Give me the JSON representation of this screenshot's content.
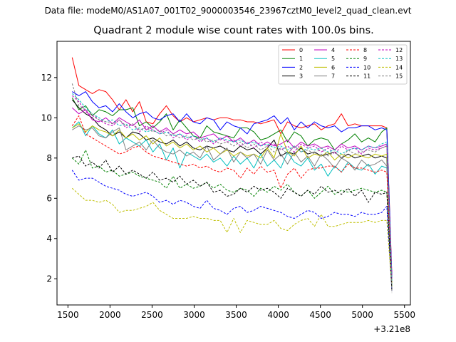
{
  "header": {
    "suptitle": "Data file: modeM0/AS1A07_001T02_9000003546_23967cztM0_level2_quad_clean.evt"
  },
  "chart_data": {
    "type": "line",
    "title": "Quadrant 2 module wise count rates with 100.0s bins.",
    "xlabel": "",
    "ylabel": "",
    "x_offset_label": "+3.21e8",
    "xlim": [
      1370,
      5570
    ],
    "ylim": [
      0.7,
      13.8
    ],
    "x_ticks": [
      1500,
      2000,
      2500,
      3000,
      3500,
      4000,
      4500,
      5000,
      5500
    ],
    "y_ticks": [
      2,
      4,
      6,
      8,
      10,
      12
    ],
    "grid": false,
    "legend_placement": "top-right",
    "x": [
      1550,
      1630,
      1710,
      1790,
      1870,
      1950,
      2030,
      2110,
      2190,
      2270,
      2350,
      2430,
      2510,
      2590,
      2670,
      2750,
      2830,
      2910,
      2990,
      3070,
      3150,
      3230,
      3310,
      3390,
      3470,
      3550,
      3630,
      3710,
      3790,
      3870,
      3950,
      4030,
      4110,
      4190,
      4270,
      4350,
      4430,
      4510,
      4590,
      4670,
      4750,
      4830,
      4910,
      4990,
      5070,
      5150,
      5230,
      5290,
      5350
    ],
    "series": [
      {
        "name": "0",
        "color": "#ff0000",
        "dash": false,
        "values": [
          13.0,
          11.6,
          11.4,
          11.2,
          11.4,
          11.3,
          10.9,
          10.4,
          10.9,
          10.3,
          10.8,
          9.8,
          9.7,
          10.2,
          10.6,
          10.1,
          9.8,
          10.0,
          9.8,
          9.9,
          10.0,
          9.9,
          10.0,
          10.0,
          9.9,
          9.9,
          9.8,
          9.8,
          9.7,
          9.8,
          9.9,
          9.2,
          9.8,
          9.6,
          9.5,
          9.6,
          9.7,
          9.4,
          9.6,
          9.7,
          10.2,
          9.6,
          9.7,
          9.6,
          9.6,
          9.6,
          9.6,
          9.5,
          2.2
        ]
      },
      {
        "name": "1",
        "color": "#008000",
        "dash": false,
        "values": [
          11.0,
          10.4,
          10.6,
          10.1,
          10.4,
          10.3,
          10.1,
          10.4,
          10.4,
          10.5,
          9.6,
          9.8,
          9.5,
          9.8,
          10.2,
          9.4,
          9.9,
          9.5,
          9.1,
          9.0,
          9.6,
          9.3,
          9.2,
          9.1,
          9.0,
          9.5,
          9.5,
          9.3,
          8.9,
          9.0,
          9.2,
          9.4,
          8.8,
          9.3,
          9.1,
          8.6,
          8.9,
          9.0,
          8.9,
          8.4,
          8.7,
          8.9,
          9.2,
          8.8,
          9.0,
          8.8,
          9.3,
          9.5,
          1.8
        ]
      },
      {
        "name": "2",
        "color": "#0000ff",
        "dash": false,
        "values": [
          11.3,
          11.1,
          11.3,
          10.8,
          10.5,
          10.6,
          10.3,
          10.7,
          10.3,
          10.0,
          10.2,
          10.3,
          10.0,
          9.9,
          10.1,
          10.2,
          9.8,
          10.2,
          9.8,
          9.7,
          10.0,
          9.9,
          9.4,
          9.8,
          9.6,
          9.5,
          9.2,
          9.7,
          9.8,
          9.9,
          10.1,
          9.7,
          10.0,
          9.4,
          9.8,
          9.5,
          9.8,
          9.6,
          9.5,
          9.6,
          9.3,
          9.5,
          9.5,
          9.6,
          9.6,
          9.4,
          9.5,
          9.4,
          2.1
        ]
      },
      {
        "name": "3",
        "color": "#000000",
        "dash": false,
        "values": [
          10.9,
          10.5,
          10.2,
          10.0,
          9.6,
          9.4,
          9.1,
          9.3,
          9.0,
          9.3,
          9.2,
          8.9,
          9.0,
          8.8,
          8.7,
          8.9,
          8.6,
          8.8,
          8.5,
          8.4,
          8.6,
          8.5,
          8.6,
          8.4,
          8.3,
          8.6,
          8.4,
          8.5,
          8.2,
          8.5,
          8.9,
          8.1,
          8.3,
          8.2,
          8.5,
          8.2,
          8.3,
          8.1,
          8.2,
          8.3,
          8.0,
          8.2,
          8.0,
          8.1,
          8.2,
          8.0,
          8.1,
          8.0,
          1.6
        ]
      },
      {
        "name": "4",
        "color": "#bf00bf",
        "dash": false,
        "values": [
          10.5,
          10.2,
          10.4,
          9.9,
          9.8,
          10.0,
          9.7,
          10.0,
          9.8,
          9.6,
          9.9,
          9.4,
          9.6,
          9.3,
          9.5,
          9.2,
          9.4,
          9.2,
          9.3,
          9.0,
          9.1,
          9.2,
          8.9,
          9.1,
          8.8,
          9.0,
          8.7,
          8.9,
          8.6,
          8.8,
          8.6,
          8.7,
          8.9,
          8.5,
          8.8,
          8.6,
          8.7,
          8.5,
          8.6,
          8.4,
          8.7,
          8.5,
          8.6,
          8.4,
          8.6,
          8.5,
          8.6,
          8.7,
          1.9
        ]
      },
      {
        "name": "5",
        "color": "#00bfbf",
        "dash": false,
        "values": [
          9.5,
          9.8,
          9.1,
          9.6,
          9.2,
          9.0,
          9.4,
          8.7,
          9.0,
          8.8,
          8.6,
          8.9,
          8.3,
          8.7,
          7.9,
          8.5,
          7.5,
          8.3,
          8.1,
          7.9,
          8.2,
          7.8,
          8.0,
          7.6,
          8.1,
          7.7,
          8.0,
          7.5,
          8.2,
          7.6,
          7.9,
          7.5,
          8.3,
          7.8,
          7.6,
          8.0,
          7.4,
          7.7,
          7.1,
          7.6,
          7.3,
          7.8,
          7.5,
          7.4,
          7.7,
          7.2,
          7.6,
          7.5,
          1.7
        ]
      },
      {
        "name": "6",
        "color": "#bfbf00",
        "dash": false,
        "values": [
          9.5,
          9.7,
          9.3,
          9.6,
          9.4,
          9.3,
          9.1,
          9.4,
          9.0,
          9.2,
          8.9,
          9.1,
          8.7,
          9.0,
          8.6,
          8.8,
          8.5,
          8.7,
          8.4,
          8.6,
          8.3,
          8.5,
          8.2,
          8.4,
          8.1,
          8.3,
          8.1,
          8.2,
          8.0,
          8.5,
          8.0,
          9.2,
          8.3,
          8.1,
          8.6,
          8.0,
          8.2,
          8.1,
          8.3,
          7.9,
          8.2,
          8.0,
          8.2,
          8.1,
          8.0,
          8.2,
          8.1,
          8.2,
          1.8
        ]
      },
      {
        "name": "7",
        "color": "#808080",
        "dash": false,
        "values": [
          9.4,
          9.6,
          9.4,
          9.5,
          9.1,
          9.0,
          9.3,
          9.5,
          8.4,
          8.6,
          8.8,
          8.4,
          8.9,
          8.5,
          8.3,
          8.2,
          8.4,
          8.1,
          8.3,
          8.0,
          8.6,
          7.9,
          8.2,
          8.5,
          7.8,
          8.3,
          8.0,
          8.2,
          7.7,
          8.4,
          7.9,
          8.2,
          7.7,
          8.3,
          7.8,
          8.1,
          7.6,
          8.2,
          7.9,
          7.5,
          8.0,
          7.8,
          7.4,
          7.9,
          7.6,
          7.7,
          7.9,
          7.6,
          1.5
        ]
      },
      {
        "name": "8",
        "color": "#ff0000",
        "dash": true,
        "values": [
          9.6,
          10.1,
          9.2,
          9.0,
          8.8,
          8.6,
          8.4,
          8.2,
          8.3,
          8.5,
          8.6,
          8.3,
          8.1,
          8.0,
          7.9,
          7.8,
          7.7,
          7.6,
          7.7,
          7.5,
          7.6,
          7.4,
          7.3,
          7.5,
          7.4,
          7.0,
          7.5,
          7.2,
          7.6,
          7.3,
          7.4,
          6.5,
          7.2,
          7.5,
          7.0,
          7.4,
          7.5,
          7.5,
          7.6,
          7.6,
          7.3,
          7.7,
          7.5,
          7.5,
          7.4,
          7.3,
          7.4,
          7.3,
          1.8
        ]
      },
      {
        "name": "9",
        "color": "#008000",
        "dash": true,
        "values": [
          8.0,
          7.7,
          8.4,
          7.5,
          7.6,
          7.3,
          7.4,
          7.1,
          7.2,
          7.3,
          7.1,
          7.0,
          6.9,
          6.8,
          6.5,
          7.1,
          6.5,
          6.7,
          6.5,
          6.6,
          6.8,
          6.5,
          6.7,
          6.4,
          6.3,
          6.5,
          6.4,
          6.1,
          6.5,
          6.3,
          6.6,
          6.4,
          6.7,
          6.3,
          6.1,
          6.4,
          6.0,
          6.3,
          6.6,
          6.2,
          6.4,
          6.3,
          6.4,
          6.5,
          6.4,
          6.3,
          6.4,
          6.3,
          1.5
        ]
      },
      {
        "name": "10",
        "color": "#0000ff",
        "dash": true,
        "values": [
          7.4,
          6.9,
          7.0,
          7.0,
          6.8,
          6.6,
          6.5,
          6.4,
          6.2,
          6.1,
          6.2,
          6.3,
          6.1,
          5.8,
          5.9,
          5.7,
          5.9,
          5.8,
          5.6,
          5.5,
          5.9,
          5.5,
          5.4,
          5.2,
          5.5,
          5.6,
          5.3,
          5.4,
          5.6,
          5.5,
          5.4,
          5.3,
          5.1,
          5.0,
          5.2,
          5.4,
          5.3,
          5.0,
          5.1,
          5.3,
          5.2,
          5.2,
          5.1,
          5.3,
          5.2,
          5.2,
          5.3,
          5.6,
          1.4
        ]
      },
      {
        "name": "11",
        "color": "#000000",
        "dash": true,
        "values": [
          8.0,
          8.1,
          7.6,
          7.8,
          7.5,
          7.9,
          7.3,
          7.6,
          7.2,
          7.4,
          7.2,
          7.0,
          7.3,
          6.9,
          7.0,
          6.8,
          7.1,
          6.7,
          6.9,
          6.6,
          6.8,
          6.3,
          6.4,
          6.1,
          6.2,
          6.5,
          6.3,
          6.6,
          6.4,
          6.5,
          6.3,
          6.0,
          6.5,
          6.3,
          6.1,
          6.4,
          6.2,
          6.6,
          6.3,
          6.4,
          6.2,
          6.5,
          6.1,
          6.4,
          5.8,
          6.3,
          6.2,
          6.3,
          1.4
        ]
      },
      {
        "name": "12",
        "color": "#bf00bf",
        "dash": true,
        "values": [
          11.1,
          10.8,
          10.3,
          10.1,
          9.9,
          9.7,
          9.6,
          9.9,
          9.5,
          9.7,
          9.3,
          9.6,
          9.4,
          9.2,
          9.4,
          9.0,
          9.2,
          8.9,
          9.1,
          8.8,
          9.0,
          8.7,
          9.0,
          8.8,
          8.9,
          8.6,
          8.8,
          8.5,
          8.8,
          8.6,
          8.7,
          8.4,
          8.6,
          8.3,
          8.7,
          8.5,
          8.6,
          8.3,
          8.5,
          8.2,
          8.6,
          8.4,
          8.5,
          8.2,
          8.5,
          8.4,
          8.5,
          8.6,
          2.0
        ]
      },
      {
        "name": "13",
        "color": "#00bfbf",
        "dash": true,
        "values": [
          11.2,
          10.9,
          10.5,
          10.2,
          10.0,
          9.8,
          9.9,
          9.6,
          9.7,
          9.4,
          9.5,
          9.3,
          9.4,
          9.2,
          9.3,
          9.1,
          9.2,
          9.0,
          9.1,
          8.9,
          9.0,
          8.8,
          9.0,
          8.9,
          8.8,
          8.9,
          8.7,
          8.8,
          8.6,
          8.7,
          8.5,
          8.6,
          8.4,
          8.6,
          8.3,
          8.5,
          8.4,
          8.5,
          8.3,
          8.4,
          8.2,
          8.4,
          8.5,
          8.4,
          8.6,
          8.5,
          8.7,
          8.8,
          1.9
        ]
      },
      {
        "name": "14",
        "color": "#bfbf00",
        "dash": true,
        "values": [
          6.5,
          6.2,
          5.9,
          5.9,
          5.8,
          5.9,
          5.7,
          5.3,
          5.4,
          5.4,
          5.5,
          5.6,
          5.8,
          5.4,
          5.2,
          5.0,
          5.0,
          5.0,
          5.1,
          5.0,
          5.0,
          4.9,
          4.9,
          4.3,
          5.0,
          4.3,
          4.9,
          4.8,
          4.7,
          4.7,
          4.9,
          4.5,
          4.4,
          4.7,
          4.9,
          5.0,
          4.6,
          5.2,
          4.6,
          4.6,
          4.7,
          4.8,
          4.8,
          4.8,
          4.9,
          4.8,
          4.9,
          4.9,
          1.6
        ]
      },
      {
        "name": "15",
        "color": "#808080",
        "dash": true,
        "values": [
          11.7,
          10.6,
          10.4,
          10.2,
          9.9,
          9.8,
          9.7,
          9.9,
          9.6,
          9.7,
          9.4,
          9.5,
          9.3,
          9.4,
          9.1,
          9.2,
          9.0,
          9.1,
          8.9,
          9.0,
          8.8,
          8.9,
          8.7,
          8.8,
          8.6,
          8.8,
          8.5,
          8.7,
          8.4,
          8.6,
          8.3,
          8.5,
          8.2,
          8.6,
          8.3,
          8.4,
          8.2,
          8.5,
          8.1,
          8.3,
          8.0,
          8.4,
          8.2,
          8.3,
          8.4,
          8.3,
          8.5,
          8.6,
          1.3
        ]
      }
    ]
  }
}
